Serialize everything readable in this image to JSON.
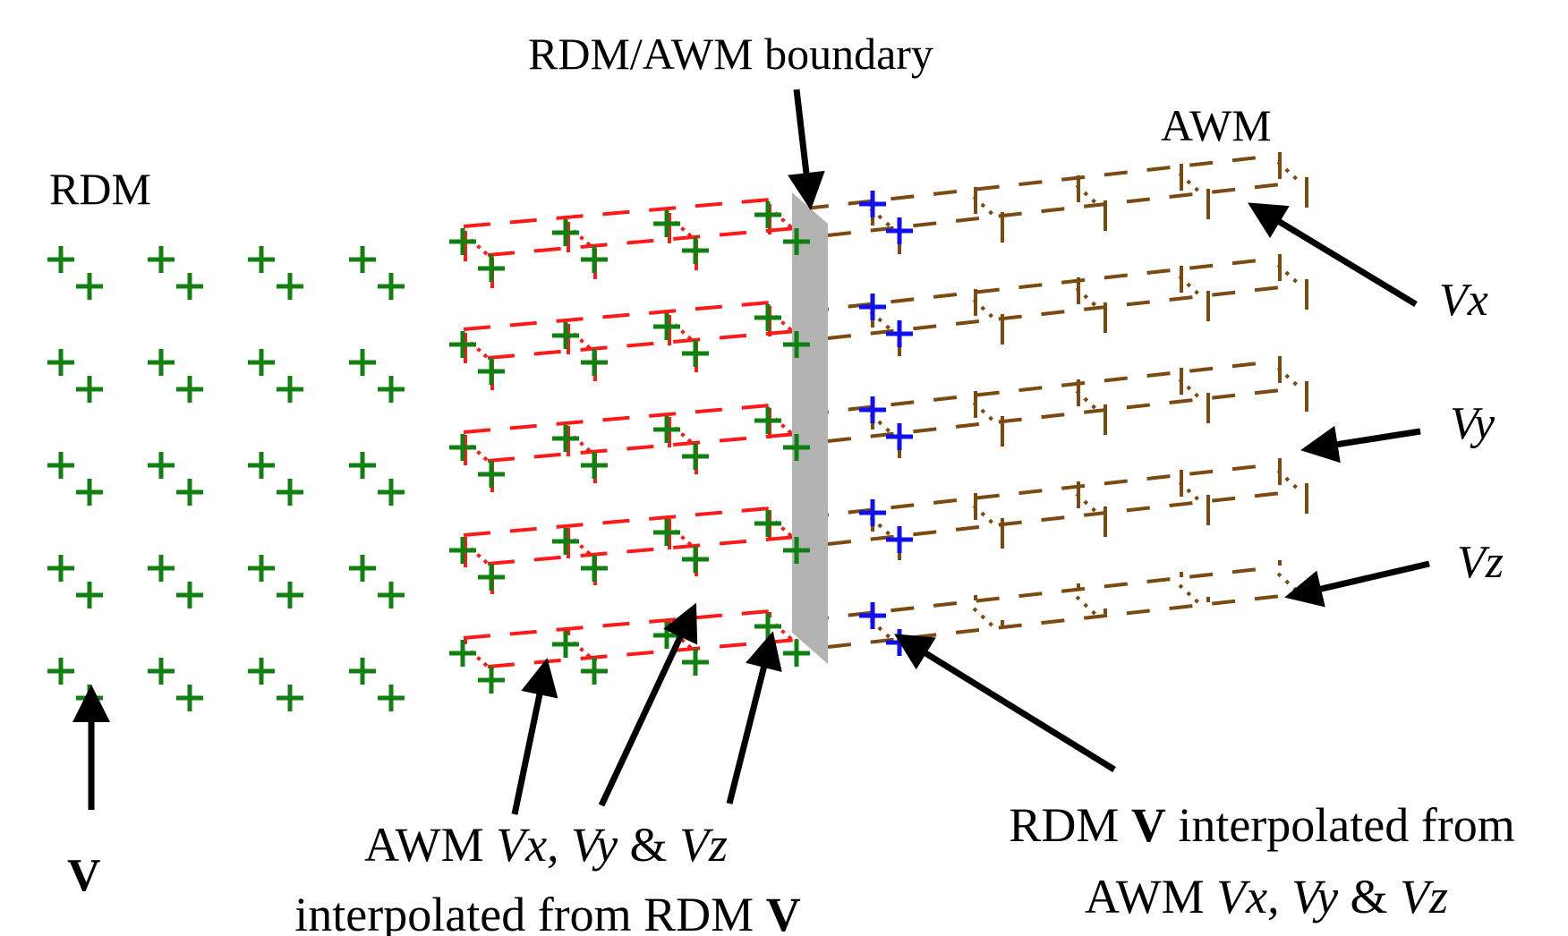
{
  "labels": {
    "boundary": "RDM/AWM boundary",
    "awm": "AWM",
    "rdm": "RDM",
    "vx": "Vx",
    "vy": "Vy",
    "vz": "Vz",
    "v": "V",
    "bottom_left": {
      "line1_prefix": "AWM ",
      "line1_vx": "Vx,",
      "line1_vy": "Vy",
      "line1_amp": " & ",
      "line1_vz": "Vz",
      "line2_text": "interpolated from RDM ",
      "line2_v": "V"
    },
    "bottom_right": {
      "line1_prefix": "RDM ",
      "line1_v": "V",
      "line1_text": " interpolated from",
      "line2_prefix": "AWM ",
      "line2_vx": "Vx,",
      "line2_vy": "Vy",
      "line2_amp": " & ",
      "line2_vz": "Vz"
    }
  },
  "colors": {
    "rdm_point": "#108010",
    "awm_rdm_grid": "#ff1a1a",
    "interp_point": "#1010ee",
    "awm_grid": "#7a4a10",
    "boundary_plane": "#b3b3b3",
    "arrow": "#000000"
  }
}
